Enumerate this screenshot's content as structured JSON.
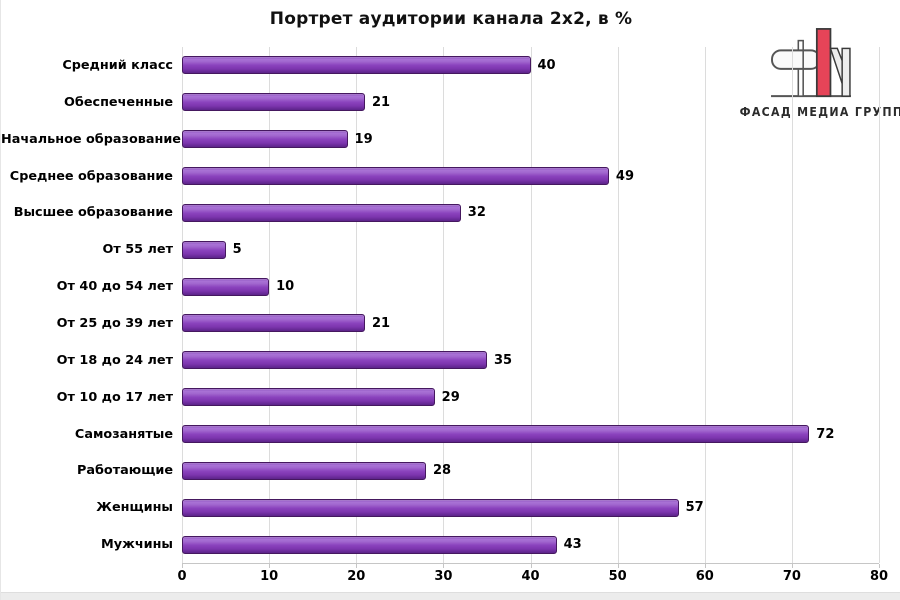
{
  "title": "Портрет аудитории канала 2х2, в %",
  "logo": {
    "text": "ФАСАД МЕДИА ГРУПП",
    "accent_color": "#e64458",
    "outline_color": "#3a3a3a"
  },
  "chart_data": {
    "type": "bar",
    "orientation": "horizontal",
    "order": "top-to-bottom",
    "title": "Портрет аудитории канала 2х2, в %",
    "categories": [
      "Средний класс",
      "Обеспеченные",
      "Начальное образование",
      "Среднее образование",
      "Высшее образование",
      "От 55 лет",
      "От 40 до 54 лет",
      "От 25 до 39 лет",
      "От 18 до 24 лет",
      "От 10 до 17 лет",
      "Самозанятые",
      "Работающие",
      "Женщины",
      "Мужчины"
    ],
    "values": [
      40,
      21,
      19,
      49,
      32,
      5,
      10,
      21,
      35,
      29,
      72,
      28,
      57,
      43
    ],
    "xlabel": "",
    "ylabel": "",
    "xlim": [
      0,
      80
    ],
    "xticks": [
      0,
      10,
      20,
      30,
      40,
      50,
      60,
      70,
      80
    ],
    "grid": true,
    "value_labels": true,
    "legend": "none",
    "bar_fill": "#8a42bd",
    "bar_border": "#45185f",
    "gridline_color": "#dcdcdc"
  }
}
